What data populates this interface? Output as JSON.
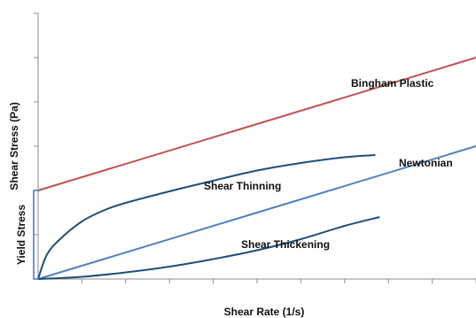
{
  "chart_data": {
    "type": "line",
    "title": "",
    "xlabel": "Shear Rate (1/s)",
    "ylabel": "Shear Stress (Pa)",
    "xlim": [
      0,
      10
    ],
    "ylim": [
      0,
      6
    ],
    "grid": false,
    "legend": "none",
    "series": [
      {
        "name": "Bingham Plastic",
        "color": "#c0504d",
        "x": [
          0,
          10
        ],
        "y": [
          2.0,
          5.0
        ]
      },
      {
        "name": "Newtonian",
        "color": "#4f81bd",
        "x": [
          0,
          10
        ],
        "y": [
          0.0,
          3.0
        ]
      },
      {
        "name": "Shear Thinning",
        "color": "#1f4e79",
        "x": [
          0,
          0.2,
          0.5,
          1,
          1.5,
          2,
          3,
          4,
          5,
          6,
          7,
          7.7
        ],
        "y": [
          0,
          0.55,
          0.9,
          1.3,
          1.55,
          1.72,
          1.98,
          2.22,
          2.45,
          2.62,
          2.75,
          2.8
        ]
      },
      {
        "name": "Shear Thickening",
        "color": "#1f4e79",
        "x": [
          0,
          1,
          2,
          3,
          4,
          5,
          6,
          7,
          7.8
        ],
        "y": [
          0,
          0.05,
          0.15,
          0.28,
          0.45,
          0.65,
          0.9,
          1.2,
          1.4
        ]
      }
    ],
    "annotations": {
      "yield_stress": "Yield Stress"
    }
  }
}
